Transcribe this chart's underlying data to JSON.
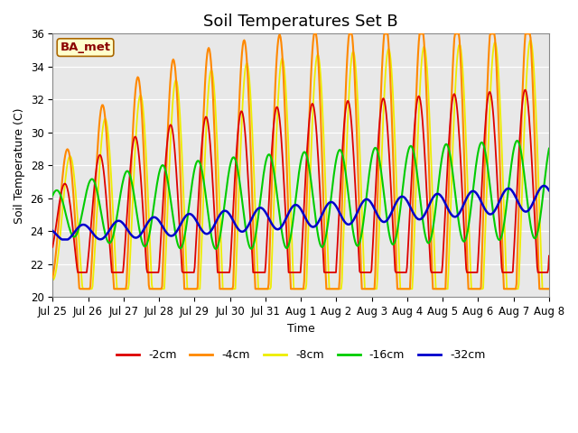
{
  "title": "Soil Temperatures Set B",
  "xlabel": "Time",
  "ylabel": "Soil Temperature (C)",
  "ylim": [
    20,
    36
  ],
  "background_color": "#e8e8e8",
  "figure_color": "#ffffff",
  "label_box": "BA_met",
  "series": {
    "-2cm": {
      "color": "#dd0000",
      "lw": 1.3
    },
    "-4cm": {
      "color": "#ff8800",
      "lw": 1.5
    },
    "-8cm": {
      "color": "#eeee00",
      "lw": 1.3
    },
    "-16cm": {
      "color": "#00cc00",
      "lw": 1.5
    },
    "-32cm": {
      "color": "#0000cc",
      "lw": 1.8
    }
  },
  "x_tick_labels": [
    "Jul 25",
    "Jul 26",
    "Jul 27",
    "Jul 28",
    "Jul 29",
    "Jul 30",
    "Jul 31",
    "Aug 1",
    "Aug 2",
    "Aug 3",
    "Aug 4",
    "Aug 5",
    "Aug 6",
    "Aug 7",
    "Aug 8"
  ],
  "title_fontsize": 13,
  "axis_fontsize": 9,
  "tick_fontsize": 8.5
}
